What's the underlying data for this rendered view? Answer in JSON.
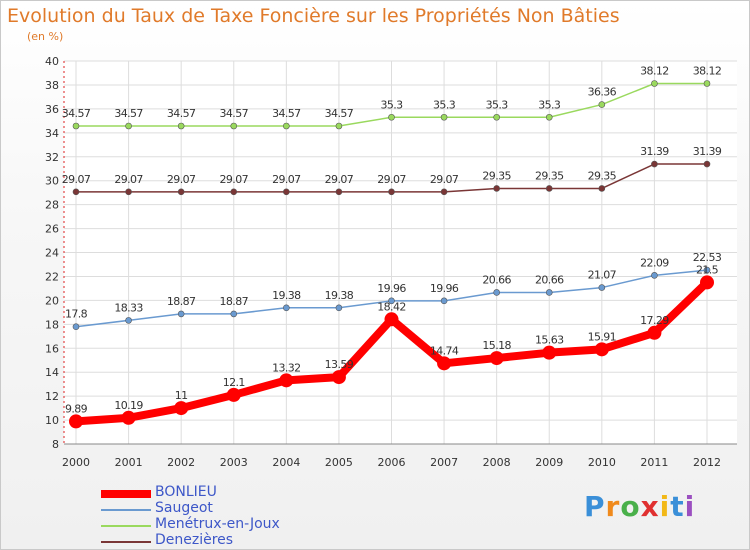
{
  "title": "Evolution du Taux de Taxe Foncière sur les Propriétés Non Bâties",
  "unit": "(en %)",
  "logo": "Proxiti",
  "chart_data": {
    "type": "line",
    "categories": [
      "2000",
      "2001",
      "2002",
      "2003",
      "2004",
      "2005",
      "2006",
      "2007",
      "2008",
      "2009",
      "2010",
      "2011",
      "2012"
    ],
    "ylim": [
      8,
      40
    ],
    "ytick_step": 2,
    "grid": true,
    "legend_position": "bottom-left",
    "series": [
      {
        "name": "BONLIEU",
        "color": "#ff0000",
        "values": [
          9.89,
          10.19,
          11,
          12.1,
          13.32,
          13.59,
          18.42,
          14.74,
          15.18,
          15.63,
          15.91,
          17.29,
          21.5
        ],
        "labels": [
          "9.89",
          "10.19",
          "11",
          "12.1",
          "13.32",
          "13.59",
          "18.42",
          "14.74",
          "15.18",
          "15.63",
          "15.91",
          "17.29",
          "21.5"
        ]
      },
      {
        "name": "Saugeot",
        "color": "#6a9ad0",
        "values": [
          17.8,
          18.33,
          18.87,
          18.87,
          19.38,
          19.38,
          19.96,
          19.96,
          20.66,
          20.66,
          21.07,
          22.09,
          22.53
        ],
        "labels": [
          "17.8",
          "18.33",
          "18.87",
          "18.87",
          "19.38",
          "19.38",
          "19.96",
          "19.96",
          "20.66",
          "20.66",
          "21.07",
          "22.09",
          "22.53"
        ]
      },
      {
        "name": "Menétrux-en-Joux",
        "color": "#9ad95e",
        "values": [
          34.57,
          34.57,
          34.57,
          34.57,
          34.57,
          34.57,
          35.3,
          35.3,
          35.3,
          35.3,
          36.36,
          38.12,
          38.12
        ],
        "labels": [
          "34.57",
          "34.57",
          "34.57",
          "34.57",
          "34.57",
          "34.57",
          "35.3",
          "35.3",
          "35.3",
          "35.3",
          "36.36",
          "38.12",
          "38.12"
        ]
      },
      {
        "name": "Denezières",
        "color": "#7a3636",
        "values": [
          29.07,
          29.07,
          29.07,
          29.07,
          29.07,
          29.07,
          29.07,
          29.07,
          29.35,
          29.35,
          29.35,
          31.39,
          31.39
        ],
        "labels": [
          "29.07",
          "29.07",
          "29.07",
          "29.07",
          "29.07",
          "29.07",
          "29.07",
          "29.07",
          "29.35",
          "29.35",
          "29.35",
          "31.39",
          "31.39"
        ]
      }
    ]
  }
}
